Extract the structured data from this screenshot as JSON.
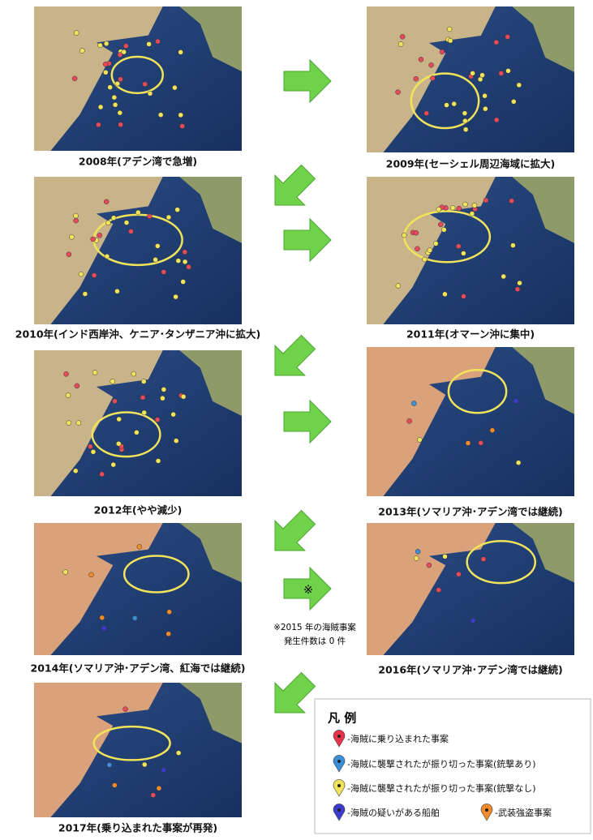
{
  "panels": [
    {
      "caption": "2008年(アデン湾で急増)"
    },
    {
      "caption": "2009年(セーシェル周辺海域に拡大)"
    },
    {
      "caption": "2010年(インド西岸沖、ケニア･タンザニア沖に拡大)"
    },
    {
      "caption": "2011年(オマーン沖に集中)"
    },
    {
      "caption": "2012年(やや減少)"
    },
    {
      "caption": "2013年(ソマリア沖･アデン湾では継続)"
    },
    {
      "caption": "2014年(ソマリア沖･アデン湾、紅海では継続)"
    },
    {
      "caption": "2016年(ソマリア沖･アデン湾では継続)"
    },
    {
      "caption": "2017年(乗り込まれた事案が再発)"
    }
  ],
  "arrow_mark": "※",
  "note": [
    "※2015 年の海賊事案",
    "発生件数は 0 件"
  ],
  "legend": {
    "title": "凡 例",
    "items": [
      "-海賊に乗り込まれた事案",
      "-海賊に襲撃されたが振り切った事案(銃撃あり)",
      "-海賊に襲撃されたが振り切った事案(銃撃なし)",
      "-海賊の疑いがある船舶",
      "-武装強盗事案"
    ]
  }
}
